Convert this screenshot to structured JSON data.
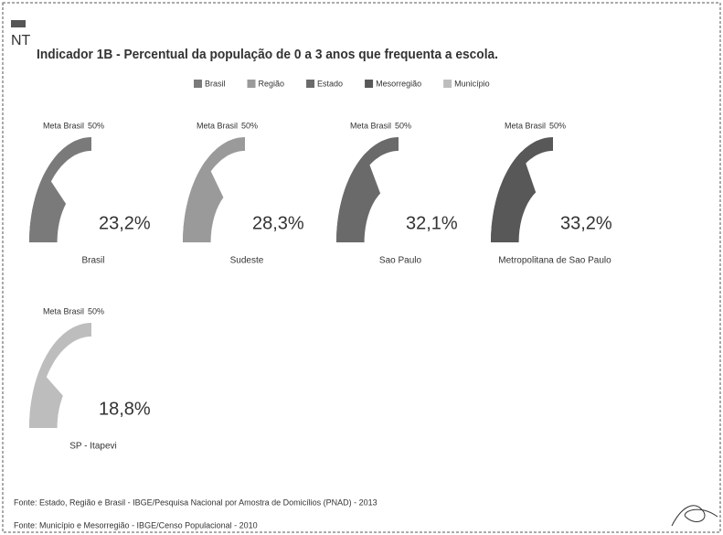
{
  "header": {
    "code": "NT"
  },
  "chart_data": {
    "type": "gauge",
    "title": "Indicador 1B - Percentual da população de 0 a 3 anos que frequenta a escola.",
    "legend": [
      {
        "name": "Brasil",
        "color": "#7a7a7a"
      },
      {
        "name": "Região",
        "color": "#9a9a9a"
      },
      {
        "name": "Estado",
        "color": "#6a6a6a"
      },
      {
        "name": "Mesorregião",
        "color": "#585858"
      },
      {
        "name": "Município",
        "color": "#bdbdbd"
      }
    ],
    "target": {
      "label": "Meta Brasil",
      "value": 50,
      "value_label": "50%"
    },
    "range": [
      0,
      50
    ],
    "gauges": [
      {
        "name": "Brasil",
        "value": 23.2,
        "value_label": "23,2%",
        "color": "#7a7a7a"
      },
      {
        "name": "Sudeste",
        "value": 28.3,
        "value_label": "28,3%",
        "color": "#9a9a9a"
      },
      {
        "name": "Sao Paulo",
        "value": 32.1,
        "value_label": "32,1%",
        "color": "#6a6a6a"
      },
      {
        "name": "Metropolitana de Sao Paulo",
        "value": 33.2,
        "value_label": "33,2%",
        "color": "#585858"
      },
      {
        "name": "SP - Itapevi",
        "value": 18.8,
        "value_label": "18,8%",
        "color": "#bdbdbd"
      }
    ]
  },
  "footer": {
    "sources": [
      "Fonte: Estado, Região e Brasil - IBGE/Pesquisa Nacional por Amostra de Domicílios (PNAD) - 2013",
      "Fonte: Município e Mesorregião - IBGE/Censo Populacional - 2010"
    ]
  }
}
